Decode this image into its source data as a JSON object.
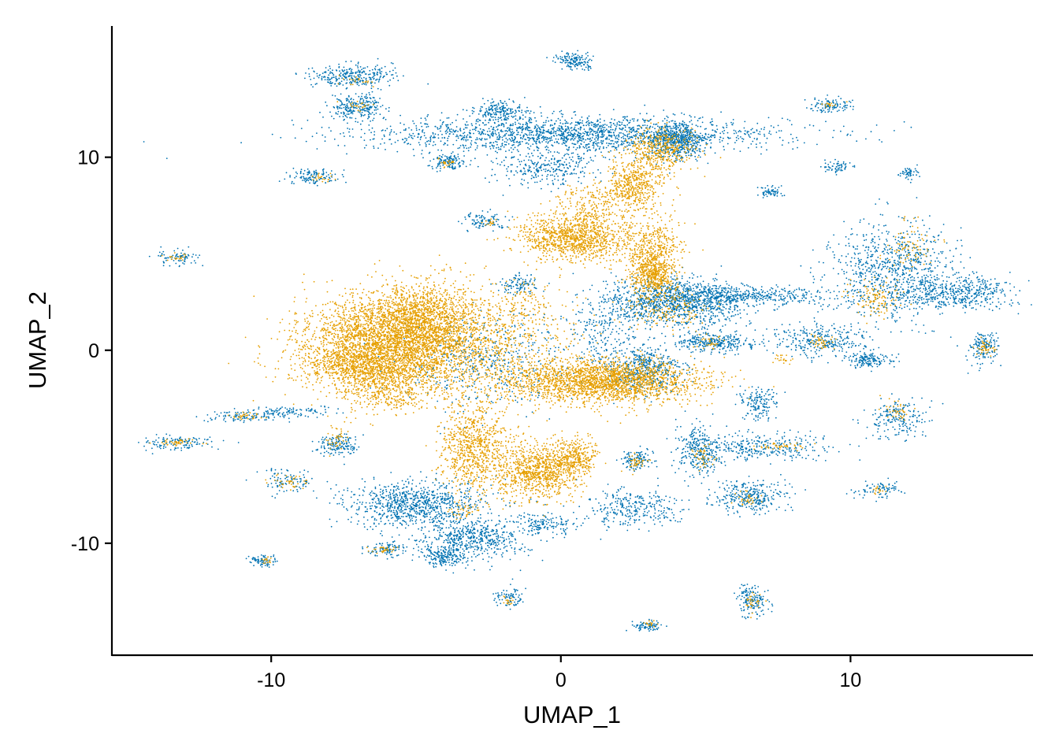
{
  "chart_data": {
    "type": "scatter",
    "xlabel": "UMAP_1",
    "ylabel": "UMAP_2",
    "xlim": [
      -15.5,
      16.3
    ],
    "ylim": [
      -15.8,
      16.8
    ],
    "x_ticks": [
      -10,
      0,
      10
    ],
    "y_ticks": [
      -10,
      0,
      10
    ],
    "grid": false,
    "legend": "none",
    "point_radius_data": 0.04,
    "series": [
      {
        "color": "#0072B2",
        "clusters": [
          {
            "cx": 0.5,
            "cy": 11.2,
            "sx": 3.6,
            "sy": 0.45,
            "n": 1800
          },
          {
            "cx": 4.0,
            "cy": 10.8,
            "sx": 0.5,
            "sy": 0.5,
            "n": 500
          },
          {
            "cx": -2.1,
            "cy": 12.4,
            "sx": 0.45,
            "sy": 0.25,
            "n": 200
          },
          {
            "cx": -0.5,
            "cy": 9.5,
            "sx": 0.9,
            "sy": 0.5,
            "n": 300
          },
          {
            "cx": -7.2,
            "cy": 14.2,
            "sx": 0.7,
            "sy": 0.3,
            "n": 300
          },
          {
            "cx": -7.0,
            "cy": 12.6,
            "sx": 0.45,
            "sy": 0.3,
            "n": 250
          },
          {
            "cx": 0.5,
            "cy": 15.0,
            "sx": 0.35,
            "sy": 0.2,
            "n": 150
          },
          {
            "cx": 9.3,
            "cy": 12.7,
            "sx": 0.35,
            "sy": 0.2,
            "n": 100
          },
          {
            "cx": -3.9,
            "cy": 9.8,
            "sx": 0.3,
            "sy": 0.2,
            "n": 120
          },
          {
            "cx": -8.5,
            "cy": 9.0,
            "sx": 0.45,
            "sy": 0.2,
            "n": 120
          },
          {
            "cx": -2.6,
            "cy": 6.7,
            "sx": 0.4,
            "sy": 0.2,
            "n": 100
          },
          {
            "cx": -13.3,
            "cy": 4.8,
            "sx": 0.4,
            "sy": 0.2,
            "n": 80
          },
          {
            "cx": 7.3,
            "cy": 8.2,
            "sx": 0.25,
            "sy": 0.15,
            "n": 60
          },
          {
            "cx": 9.5,
            "cy": 9.5,
            "sx": 0.25,
            "sy": 0.15,
            "n": 60
          },
          {
            "cx": 12.0,
            "cy": 9.2,
            "sx": 0.2,
            "sy": 0.15,
            "n": 50
          },
          {
            "cx": 4.0,
            "cy": 2.5,
            "sx": 1.2,
            "sy": 0.6,
            "n": 1200
          },
          {
            "cx": 6.5,
            "cy": 2.8,
            "sx": 1.5,
            "sy": 0.25,
            "n": 400
          },
          {
            "cx": 11.5,
            "cy": 4.0,
            "sx": 1.1,
            "sy": 1.2,
            "n": 900
          },
          {
            "cx": 13.8,
            "cy": 3.0,
            "sx": 0.9,
            "sy": 0.4,
            "n": 400
          },
          {
            "cx": 9.0,
            "cy": 0.5,
            "sx": 0.8,
            "sy": 0.4,
            "n": 300
          },
          {
            "cx": 10.6,
            "cy": -0.5,
            "sx": 0.4,
            "sy": 0.2,
            "n": 150
          },
          {
            "cx": 14.6,
            "cy": 0.1,
            "sx": 0.3,
            "sy": 0.4,
            "n": 150
          },
          {
            "cx": 5.3,
            "cy": 0.4,
            "sx": 0.7,
            "sy": 0.25,
            "n": 300
          },
          {
            "cx": 2.8,
            "cy": -1.0,
            "sx": 0.7,
            "sy": 0.6,
            "n": 500
          },
          {
            "cx": 1.5,
            "cy": 1.0,
            "sx": 0.6,
            "sy": 1.0,
            "n": 200
          },
          {
            "cx": -2.5,
            "cy": -0.5,
            "sx": 1.5,
            "sy": 1.3,
            "n": 500
          },
          {
            "cx": -1.5,
            "cy": 3.4,
            "sx": 0.3,
            "sy": 0.3,
            "n": 100
          },
          {
            "cx": -5.0,
            "cy": -8.0,
            "sx": 1.2,
            "sy": 0.6,
            "n": 900
          },
          {
            "cx": -3.0,
            "cy": -9.8,
            "sx": 0.9,
            "sy": 0.5,
            "n": 500
          },
          {
            "cx": -4.0,
            "cy": -10.7,
            "sx": 0.4,
            "sy": 0.3,
            "n": 200
          },
          {
            "cx": -0.5,
            "cy": -9.0,
            "sx": 0.5,
            "sy": 0.3,
            "n": 150
          },
          {
            "cx": -6.0,
            "cy": -10.3,
            "sx": 0.4,
            "sy": 0.2,
            "n": 100
          },
          {
            "cx": 2.5,
            "cy": -8.2,
            "sx": 0.8,
            "sy": 0.5,
            "n": 300
          },
          {
            "cx": 2.6,
            "cy": -5.7,
            "sx": 0.3,
            "sy": 0.3,
            "n": 120
          },
          {
            "cx": 4.8,
            "cy": -5.2,
            "sx": 0.4,
            "sy": 0.6,
            "n": 300
          },
          {
            "cx": 6.8,
            "cy": -2.7,
            "sx": 0.3,
            "sy": 0.4,
            "n": 150
          },
          {
            "cx": 7.0,
            "cy": -5.0,
            "sx": 1.1,
            "sy": 0.35,
            "n": 300
          },
          {
            "cx": 6.5,
            "cy": -7.6,
            "sx": 0.6,
            "sy": 0.4,
            "n": 300
          },
          {
            "cx": 11.6,
            "cy": -3.6,
            "sx": 0.5,
            "sy": 0.5,
            "n": 200
          },
          {
            "cx": 11.0,
            "cy": -7.2,
            "sx": 0.4,
            "sy": 0.2,
            "n": 80
          },
          {
            "cx": 6.6,
            "cy": -13.0,
            "sx": 0.3,
            "sy": 0.4,
            "n": 150
          },
          {
            "cx": 3.0,
            "cy": -14.3,
            "sx": 0.25,
            "sy": 0.15,
            "n": 80
          },
          {
            "cx": -1.8,
            "cy": -12.8,
            "sx": 0.25,
            "sy": 0.25,
            "n": 80
          },
          {
            "cx": -10.3,
            "cy": -10.9,
            "sx": 0.25,
            "sy": 0.15,
            "n": 80
          },
          {
            "cx": -9.5,
            "cy": -6.8,
            "sx": 0.5,
            "sy": 0.3,
            "n": 100
          },
          {
            "cx": -7.7,
            "cy": -4.9,
            "sx": 0.35,
            "sy": 0.3,
            "n": 150
          },
          {
            "cx": -11.0,
            "cy": -3.4,
            "sx": 0.6,
            "sy": 0.15,
            "n": 100
          },
          {
            "cx": -9.3,
            "cy": -3.2,
            "sx": 0.8,
            "sy": 0.15,
            "n": 100
          },
          {
            "cx": -13.3,
            "cy": -4.8,
            "sx": 0.7,
            "sy": 0.2,
            "n": 120
          }
        ]
      },
      {
        "color": "#E69F00",
        "clusters": [
          {
            "cx": -5.8,
            "cy": 0.3,
            "sx": 1.6,
            "sy": 1.2,
            "n": 3500
          },
          {
            "cx": -4.8,
            "cy": 1.8,
            "sx": 1.0,
            "sy": 0.9,
            "n": 1000
          },
          {
            "cx": -7.0,
            "cy": -0.8,
            "sx": 0.9,
            "sy": 0.5,
            "n": 500
          },
          {
            "cx": -6.0,
            "cy": -2.0,
            "sx": 0.8,
            "sy": 0.6,
            "n": 400
          },
          {
            "cx": 1.5,
            "cy": -1.6,
            "sx": 1.6,
            "sy": 0.55,
            "n": 2200
          },
          {
            "cx": -3.0,
            "cy": -5.0,
            "sx": 0.6,
            "sy": 1.2,
            "n": 800
          },
          {
            "cx": -0.8,
            "cy": -6.3,
            "sx": 0.7,
            "sy": 0.7,
            "n": 900
          },
          {
            "cx": 0.5,
            "cy": -5.5,
            "sx": 0.4,
            "sy": 0.5,
            "n": 300
          },
          {
            "cx": 0.5,
            "cy": 5.8,
            "sx": 1.0,
            "sy": 0.6,
            "n": 1100
          },
          {
            "cx": 2.5,
            "cy": 8.5,
            "sx": 0.5,
            "sy": 0.7,
            "n": 500
          },
          {
            "cx": 3.4,
            "cy": 10.4,
            "sx": 0.6,
            "sy": 0.6,
            "n": 400
          },
          {
            "cx": 3.2,
            "cy": 5.0,
            "sx": 0.5,
            "sy": 1.0,
            "n": 500
          },
          {
            "cx": 3.2,
            "cy": 3.9,
            "sx": 0.4,
            "sy": 0.6,
            "n": 400
          },
          {
            "cx": 1.0,
            "cy": 7.5,
            "sx": 0.6,
            "sy": 0.6,
            "n": 200
          },
          {
            "cx": -2.5,
            "cy": 0.3,
            "sx": 1.6,
            "sy": 1.5,
            "n": 700
          },
          {
            "cx": -1.2,
            "cy": 2.5,
            "sx": 0.4,
            "sy": 0.6,
            "n": 80
          },
          {
            "cx": 3.7,
            "cy": 2.0,
            "sx": 0.8,
            "sy": 0.5,
            "n": 150
          },
          {
            "cx": 10.9,
            "cy": 2.7,
            "sx": 0.5,
            "sy": 0.5,
            "n": 120
          },
          {
            "cx": 12.1,
            "cy": 5.3,
            "sx": 0.4,
            "sy": 0.6,
            "n": 80
          },
          {
            "cx": 14.6,
            "cy": 0.1,
            "sx": 0.2,
            "sy": 0.2,
            "n": 40
          },
          {
            "cx": 9.0,
            "cy": 0.5,
            "sx": 0.3,
            "sy": 0.2,
            "n": 40
          },
          {
            "cx": 5.1,
            "cy": 0.3,
            "sx": 0.3,
            "sy": 0.2,
            "n": 30
          },
          {
            "cx": 7.7,
            "cy": -0.5,
            "sx": 0.15,
            "sy": 0.15,
            "n": 20
          },
          {
            "cx": 2.6,
            "cy": -5.8,
            "sx": 0.2,
            "sy": 0.2,
            "n": 40
          },
          {
            "cx": 4.9,
            "cy": -5.5,
            "sx": 0.2,
            "sy": 0.3,
            "n": 40
          },
          {
            "cx": 7.5,
            "cy": -5.0,
            "sx": 0.5,
            "sy": 0.1,
            "n": 40
          },
          {
            "cx": 6.5,
            "cy": -7.7,
            "sx": 0.2,
            "sy": 0.2,
            "n": 30
          },
          {
            "cx": 11.6,
            "cy": -3.2,
            "sx": 0.25,
            "sy": 0.3,
            "n": 40
          },
          {
            "cx": 6.6,
            "cy": -13.0,
            "sx": 0.15,
            "sy": 0.3,
            "n": 30
          },
          {
            "cx": 3.1,
            "cy": -14.2,
            "sx": 0.1,
            "sy": 0.1,
            "n": 15
          },
          {
            "cx": -1.8,
            "cy": -13.0,
            "sx": 0.1,
            "sy": 0.1,
            "n": 15
          },
          {
            "cx": -10.2,
            "cy": -10.9,
            "sx": 0.1,
            "sy": 0.1,
            "n": 15
          },
          {
            "cx": -6.1,
            "cy": -10.3,
            "sx": 0.2,
            "sy": 0.1,
            "n": 30
          },
          {
            "cx": -3.3,
            "cy": -8.3,
            "sx": 0.3,
            "sy": 0.2,
            "n": 40
          },
          {
            "cx": -9.4,
            "cy": -6.8,
            "sx": 0.3,
            "sy": 0.2,
            "n": 40
          },
          {
            "cx": -7.7,
            "cy": -4.5,
            "sx": 0.2,
            "sy": 0.3,
            "n": 40
          },
          {
            "cx": -10.8,
            "cy": -3.4,
            "sx": 0.3,
            "sy": 0.1,
            "n": 30
          },
          {
            "cx": -13.2,
            "cy": -4.8,
            "sx": 0.4,
            "sy": 0.1,
            "n": 40
          },
          {
            "cx": -7.0,
            "cy": 12.6,
            "sx": 0.2,
            "sy": 0.15,
            "n": 20
          },
          {
            "cx": -7.0,
            "cy": 14.0,
            "sx": 0.3,
            "sy": 0.15,
            "n": 20
          },
          {
            "cx": -3.9,
            "cy": 9.7,
            "sx": 0.15,
            "sy": 0.1,
            "n": 25
          },
          {
            "cx": -8.3,
            "cy": 8.9,
            "sx": 0.2,
            "sy": 0.1,
            "n": 20
          },
          {
            "cx": -2.5,
            "cy": 6.6,
            "sx": 0.15,
            "sy": 0.1,
            "n": 15
          },
          {
            "cx": 9.3,
            "cy": 12.7,
            "sx": 0.15,
            "sy": 0.1,
            "n": 15
          },
          {
            "cx": 11.0,
            "cy": -7.2,
            "sx": 0.2,
            "sy": 0.1,
            "n": 15
          },
          {
            "cx": -13.3,
            "cy": 4.8,
            "sx": 0.2,
            "sy": 0.1,
            "n": 20
          }
        ]
      }
    ]
  }
}
